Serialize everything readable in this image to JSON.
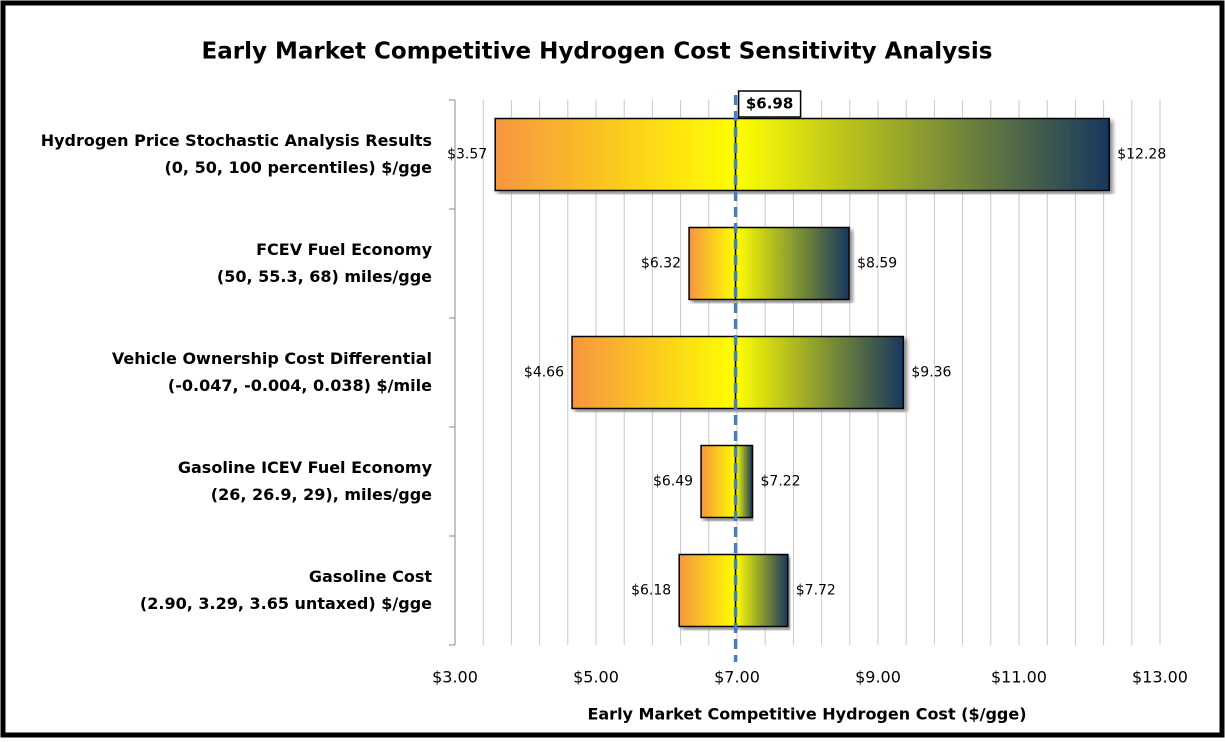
{
  "chart_data": {
    "type": "tornado",
    "title": "Early Market Competitive Hydrogen Cost Sensitivity Analysis",
    "x_label": "Early Market Competitive Hydrogen Cost ($/gge)",
    "categories": [
      [
        "Hydrogen Price Stochastic Analysis Results",
        "(0, 50, 100 percentiles) $/gge"
      ],
      [
        "FCEV Fuel Economy",
        "(50, 55.3, 68) miles/gge"
      ],
      [
        "Vehicle Ownership Cost Differential",
        "(-0.047, -0.004, 0.038) $/mile"
      ],
      [
        "Gasoline ICEV Fuel Economy",
        "(26, 26.9, 29), miles/gge"
      ],
      [
        "Gasoline Cost",
        "(2.90, 3.29, 3.65 untaxed) $/gge"
      ]
    ],
    "base": 6.98,
    "base_label": "$6.98",
    "base_color": "#4a7ebb",
    "series": [
      {
        "colors": [
          "#f7953f",
          "#ffff00"
        ],
        "values": [
          3.57,
          6.32,
          4.66,
          6.49,
          6.18
        ],
        "value_labels": [
          "$3.57",
          "$6.32",
          "$4.66",
          "$6.49",
          "$6.18"
        ]
      },
      {
        "colors": [
          "#ffff00",
          "#17375e"
        ],
        "values": [
          12.28,
          8.59,
          9.36,
          7.22,
          7.72
        ],
        "value_labels": [
          "$12.28",
          "$8.59",
          "$9.36",
          "$7.22",
          "$7.72"
        ]
      }
    ],
    "xlim": [
      3,
      13
    ],
    "xticks": [
      {
        "value": 3,
        "label": "$3.00"
      },
      {
        "value": 5,
        "label": "$5.00"
      },
      {
        "value": 7,
        "label": "$7.00"
      },
      {
        "value": 9,
        "label": "$9.00"
      },
      {
        "value": 11,
        "label": "$11.00"
      },
      {
        "value": 13,
        "label": "$13.00"
      }
    ],
    "xminorticks": [
      3.4,
      3.8,
      4.2,
      4.6,
      5.4,
      5.8,
      6.2,
      6.6,
      7.4,
      7.8,
      8.2,
      8.6,
      9.4,
      9.8,
      10.2,
      10.6,
      11.4,
      11.8,
      12.2,
      12.6
    ],
    "grid": true
  }
}
